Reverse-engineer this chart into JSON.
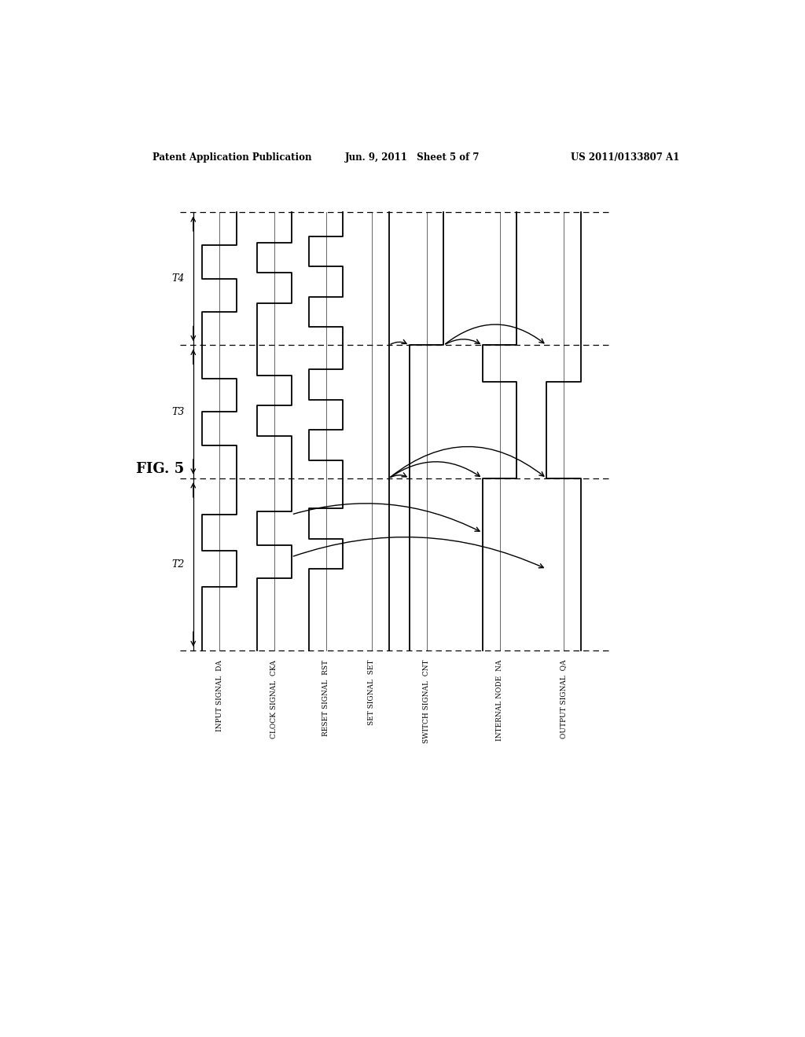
{
  "title_left": "Patent Application Publication",
  "title_center": "Jun. 9, 2011   Sheet 5 of 7",
  "title_right": "US 2011/0133807 A1",
  "fig_label": "FIG. 5",
  "signal_labels": [
    "INPUT SIGNAL  DA",
    "CLOCK SIGNAL  CKA",
    "RESET SIGNAL  RST",
    "SET SIGNAL  SET",
    "SWITCH SIGNAL  CNT",
    "INTERNAL NODE  NA",
    "OUTPUT SIGNAL  QA"
  ],
  "bg_color": "#ffffff"
}
